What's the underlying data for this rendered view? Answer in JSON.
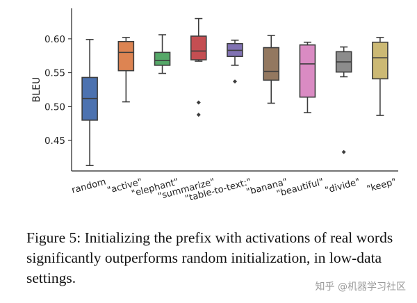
{
  "chart_data": {
    "type": "box",
    "ylabel": "BLEU",
    "xlabel": "",
    "ylim": [
      0.405,
      0.645
    ],
    "yticks": [
      0.45,
      0.5,
      0.55,
      0.6
    ],
    "ytick_labels": [
      "0.45",
      "0.50",
      "0.55",
      "0.60"
    ],
    "grid": false,
    "categories": [
      "random",
      "\"active\"",
      "\"elephant\"",
      "\"summarize\"",
      "\"table-to-text:\"",
      "\"banana\"",
      "\"beautiful\"",
      "\"divide\"",
      "\"keep\""
    ],
    "boxes": [
      {
        "min": 0.413,
        "q1": 0.48,
        "median": 0.512,
        "q3": 0.543,
        "max": 0.599,
        "outliers": [],
        "color": "#4c72b0"
      },
      {
        "min": 0.507,
        "q1": 0.553,
        "median": 0.58,
        "q3": 0.596,
        "max": 0.602,
        "outliers": [],
        "color": "#dd8452"
      },
      {
        "min": 0.549,
        "q1": 0.561,
        "median": 0.568,
        "q3": 0.58,
        "max": 0.606,
        "outliers": [],
        "color": "#55a868"
      },
      {
        "min": 0.567,
        "q1": 0.569,
        "median": 0.582,
        "q3": 0.604,
        "max": 0.63,
        "outliers": [
          0.506,
          0.488
        ],
        "color": "#c44e52"
      },
      {
        "min": 0.561,
        "q1": 0.574,
        "median": 0.583,
        "q3": 0.593,
        "max": 0.598,
        "outliers": [
          0.537
        ],
        "color": "#8172b3"
      },
      {
        "min": 0.505,
        "q1": 0.539,
        "median": 0.552,
        "q3": 0.587,
        "max": 0.605,
        "outliers": [],
        "color": "#937860"
      },
      {
        "min": 0.491,
        "q1": 0.514,
        "median": 0.563,
        "q3": 0.591,
        "max": 0.595,
        "outliers": [],
        "color": "#da8bc3"
      },
      {
        "min": 0.544,
        "q1": 0.551,
        "median": 0.566,
        "q3": 0.581,
        "max": 0.588,
        "outliers": [
          0.433
        ],
        "color": "#8c8c8c"
      },
      {
        "min": 0.487,
        "q1": 0.541,
        "median": 0.572,
        "q3": 0.595,
        "max": 0.602,
        "outliers": [],
        "color": "#ccb974"
      }
    ]
  },
  "caption": "Figure 5:  Initializing the prefix with activations of real words significantly outperforms random initialization, in low-data settings.",
  "watermark": "知乎 @机器学习社区"
}
